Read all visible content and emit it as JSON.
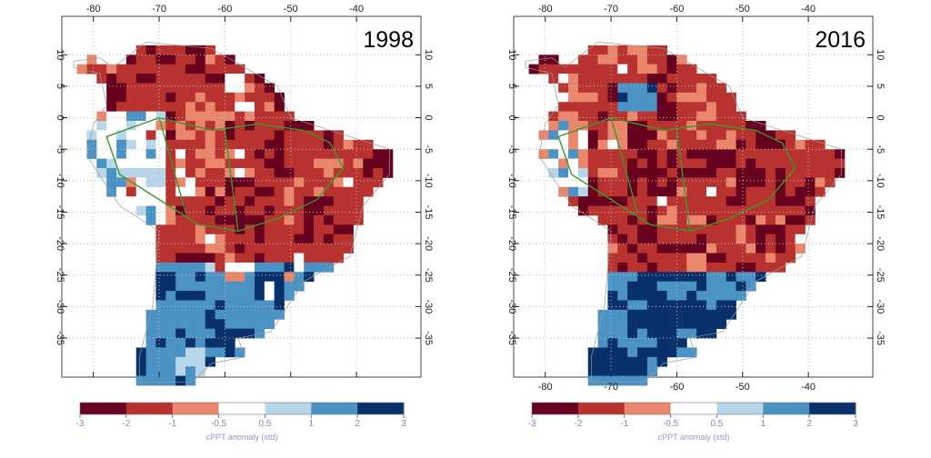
{
  "panels": [
    {
      "label": "1998",
      "xlim": [
        -84.8,
        -30.2
      ],
      "ylim": [
        -41.2,
        16.1
      ],
      "xticks": [
        -80,
        -70,
        -60,
        -50,
        -40
      ],
      "yticks": [
        10,
        5,
        0,
        -5,
        -10,
        -15,
        -20,
        -25,
        -30,
        -35
      ]
    },
    {
      "label": "2016",
      "xlim": [
        -84.8,
        -30.2
      ],
      "ylim": [
        -41.2,
        16.1
      ],
      "xticks": [
        -80,
        -70,
        -60,
        -50,
        -40
      ],
      "yticks": [
        10,
        5,
        0,
        -5,
        -10,
        -15,
        -20,
        -25,
        -30,
        -35
      ]
    }
  ],
  "colorbar": {
    "label": "cPPT anomaly (std)",
    "ticks": [
      -3,
      -2,
      -1,
      -0.5,
      0.5,
      1,
      2,
      3
    ],
    "colors": [
      "#67001f",
      "#b8332f",
      "#e9866b",
      "#ffffff",
      "#b7d6e9",
      "#4b93c4",
      "#08306b"
    ]
  }
}
